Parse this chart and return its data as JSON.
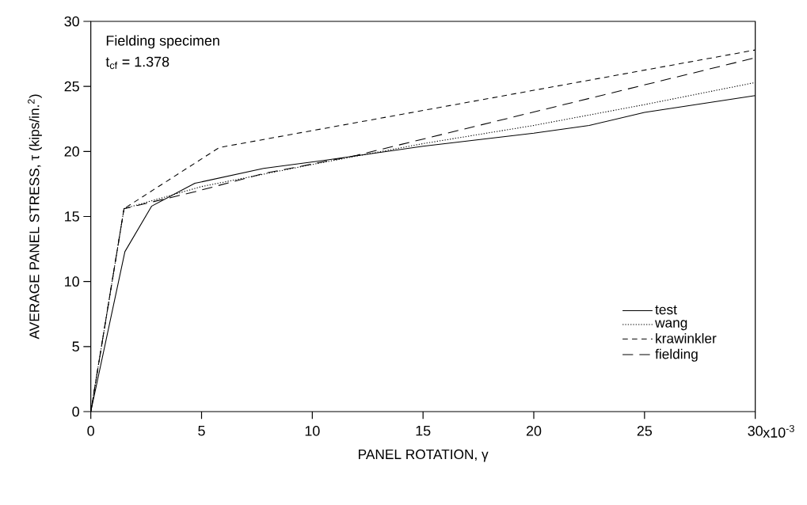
{
  "chart_data": {
    "type": "line",
    "xlabel": "PANEL ROTATION, γ",
    "ylabel": "AVERAGE PANEL STRESS, τ  (kips/in.$^{2}$)",
    "annotations": [
      "Fielding specimen",
      "t$_{cf}$ = 1.378",
      "x10$^{-3}$"
    ],
    "xlim": [
      0,
      30
    ],
    "ylim": [
      0,
      30
    ],
    "xticks": [
      0,
      5,
      10,
      15,
      20,
      25,
      30
    ],
    "yticks": [
      0,
      5,
      10,
      15,
      20,
      25,
      30
    ],
    "grid": false,
    "legend": "bottom right",
    "marker": "none",
    "series": [
      {
        "name": "test",
        "color": "#000000",
        "line_style": "solid",
        "x": [
          0,
          1.54,
          2.75,
          4.7,
          7.8,
          10.5,
          15,
          20,
          22.5,
          25,
          30
        ],
        "values": [
          0,
          12.3,
          15.8,
          17.55,
          18.7,
          19.3,
          20.4,
          21.4,
          22.0,
          23.0,
          24.3
        ]
      },
      {
        "name": "wang",
        "color": "#000000",
        "line_style": "dotted",
        "x": [
          0,
          1.5,
          5,
          10,
          15,
          20,
          25,
          30
        ],
        "values": [
          0,
          15.6,
          17.3,
          19.0,
          20.6,
          22.0,
          23.6,
          25.3
        ]
      },
      {
        "name": "krawinkler",
        "color": "#000000",
        "line_style": "dashed",
        "x": [
          0,
          1.5,
          5.8,
          30
        ],
        "values": [
          0,
          15.6,
          20.3,
          27.8
        ]
      },
      {
        "name": "fielding",
        "color": "#000000",
        "line_style": "dashed",
        "x": [
          0,
          1.5,
          4.7,
          7.8,
          12,
          30
        ],
        "values": [
          0,
          15.6,
          16.9,
          18.3,
          19.7,
          27.2
        ]
      }
    ]
  }
}
